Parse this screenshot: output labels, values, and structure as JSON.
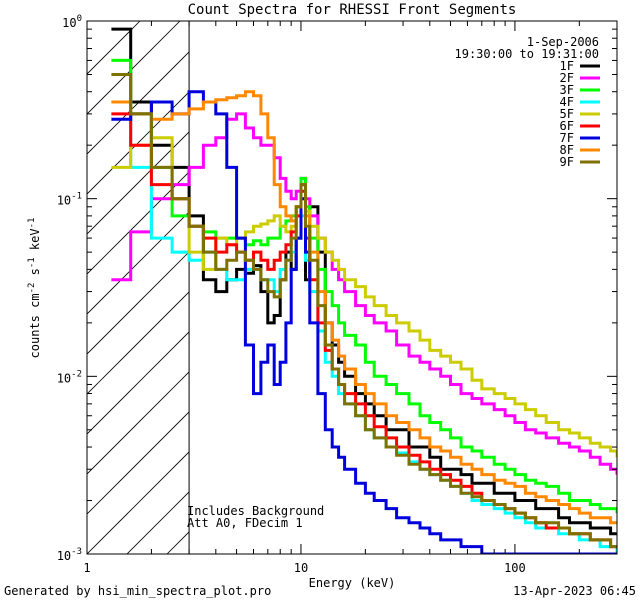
{
  "chart_data": {
    "type": "line",
    "scale": "log-log",
    "title": "Count Spectra for RHESSI Front Segments",
    "xlabel": "Energy (keV)",
    "ylabel_parts": [
      "counts cm",
      "-2",
      " s",
      "-1",
      " keV",
      "-1"
    ],
    "xlim": [
      1,
      300
    ],
    "ylim": [
      0.001,
      1
    ],
    "x_ticks": [
      {
        "value": 1,
        "label": "1"
      },
      {
        "value": 10,
        "label": "10"
      },
      {
        "value": 100,
        "label": "100"
      }
    ],
    "y_ticks": [
      {
        "value": 1,
        "mant": "10",
        "exp": "0"
      },
      {
        "value": 0.1,
        "mant": "10",
        "exp": "-1"
      },
      {
        "value": 0.01,
        "mant": "10",
        "exp": "-2"
      },
      {
        "value": 0.001,
        "mant": "10",
        "exp": "-3"
      }
    ],
    "date": "1-Sep-2006",
    "time_range": "19:30:00 to 19:31:00",
    "hatched_region_max_energy": 3,
    "annotation_lines": [
      "Includes Background",
      "Att A0, FDecim 1"
    ],
    "footer_left": "Generated by hsi_min_spectra_plot.pro",
    "footer_right": "13-Apr-2023 06:45",
    "energy_bins": [
      1.3,
      1.6,
      2.0,
      2.5,
      3.0,
      3.5,
      4.0,
      4.5,
      5.0,
      5.5,
      6.0,
      6.5,
      7.0,
      7.5,
      8.0,
      8.5,
      9.0,
      9.5,
      10.0,
      10.5,
      11.0,
      12.0,
      13.0,
      14.0,
      15.0,
      16.0,
      18.0,
      20.0,
      22.0,
      25.0,
      28.0,
      32.0,
      36.0,
      40.0,
      45.0,
      50.0,
      56.0,
      63.0,
      70.0,
      80.0,
      90.0,
      100.0,
      112.0,
      125.0,
      140.0,
      160.0,
      180.0,
      200.0,
      225.0,
      250.0,
      280.0,
      300.0
    ],
    "series": [
      {
        "name": "1F",
        "color": "#000000",
        "values": [
          0.9,
          0.35,
          0.2,
          0.15,
          0.08,
          0.035,
          0.03,
          0.035,
          0.04,
          0.038,
          0.042,
          0.03,
          0.02,
          0.022,
          0.035,
          0.05,
          0.04,
          0.06,
          0.12,
          0.035,
          0.09,
          0.05,
          0.02,
          0.015,
          0.012,
          0.01,
          0.008,
          0.007,
          0.006,
          0.005,
          0.005,
          0.004,
          0.004,
          0.0035,
          0.003,
          0.003,
          0.0028,
          0.0025,
          0.0025,
          0.0022,
          0.0022,
          0.002,
          0.002,
          0.0018,
          0.0018,
          0.0016,
          0.0015,
          0.0015,
          0.0014,
          0.0014,
          0.0013,
          0.0013
        ]
      },
      {
        "name": "2F",
        "color": "#ff00ff",
        "values": [
          0.035,
          0.065,
          0.1,
          0.12,
          0.15,
          0.2,
          0.22,
          0.28,
          0.3,
          0.25,
          0.22,
          0.2,
          0.2,
          0.17,
          0.13,
          0.11,
          0.1,
          0.11,
          0.13,
          0.1,
          0.08,
          0.06,
          0.05,
          0.04,
          0.035,
          0.03,
          0.025,
          0.022,
          0.02,
          0.018,
          0.015,
          0.013,
          0.012,
          0.011,
          0.01,
          0.009,
          0.008,
          0.0075,
          0.007,
          0.0065,
          0.006,
          0.0055,
          0.005,
          0.0048,
          0.0045,
          0.0042,
          0.004,
          0.0038,
          0.0035,
          0.0032,
          0.003,
          0.0028
        ]
      },
      {
        "name": "3F",
        "color": "#00ff00",
        "values": [
          0.6,
          0.3,
          0.15,
          0.08,
          0.07,
          0.065,
          0.06,
          0.06,
          0.06,
          0.055,
          0.058,
          0.055,
          0.06,
          0.06,
          0.07,
          0.075,
          0.08,
          0.09,
          0.13,
          0.09,
          0.06,
          0.04,
          0.03,
          0.025,
          0.02,
          0.017,
          0.015,
          0.012,
          0.01,
          0.009,
          0.008,
          0.007,
          0.006,
          0.0055,
          0.005,
          0.0045,
          0.004,
          0.0038,
          0.0035,
          0.0032,
          0.003,
          0.0028,
          0.0026,
          0.0025,
          0.0024,
          0.0022,
          0.002,
          0.002,
          0.0019,
          0.0018,
          0.0018,
          0.0017
        ]
      },
      {
        "name": "4F",
        "color": "#00ffff",
        "values": [
          0.35,
          0.15,
          0.06,
          0.05,
          0.045,
          0.05,
          0.04,
          0.035,
          0.035,
          0.04,
          0.04,
          0.035,
          0.035,
          0.03,
          0.04,
          0.045,
          0.05,
          0.06,
          0.08,
          0.045,
          0.03,
          0.018,
          0.012,
          0.01,
          0.008,
          0.007,
          0.006,
          0.005,
          0.0045,
          0.004,
          0.0037,
          0.0033,
          0.003,
          0.0028,
          0.0026,
          0.0024,
          0.0022,
          0.002,
          0.0019,
          0.0018,
          0.0017,
          0.0016,
          0.0015,
          0.0014,
          0.0014,
          0.0013,
          0.0013,
          0.0012,
          0.0012,
          0.0011,
          0.0011,
          0.001
        ]
      },
      {
        "name": "5F",
        "color": "#cccc00",
        "values": [
          0.15,
          0.2,
          0.22,
          0.1,
          0.05,
          0.04,
          0.06,
          0.055,
          0.06,
          0.065,
          0.07,
          0.072,
          0.075,
          0.08,
          0.07,
          0.065,
          0.07,
          0.09,
          0.1,
          0.085,
          0.07,
          0.06,
          0.05,
          0.045,
          0.04,
          0.035,
          0.032,
          0.028,
          0.025,
          0.022,
          0.02,
          0.018,
          0.016,
          0.014,
          0.013,
          0.012,
          0.011,
          0.0095,
          0.0085,
          0.008,
          0.0075,
          0.007,
          0.0065,
          0.006,
          0.0055,
          0.005,
          0.0048,
          0.0045,
          0.0042,
          0.004,
          0.0038,
          0.0035
        ]
      },
      {
        "name": "6F",
        "color": "#ff0000",
        "values": [
          0.3,
          0.2,
          0.12,
          0.1,
          0.07,
          0.06,
          0.05,
          0.055,
          0.05,
          0.045,
          0.05,
          0.045,
          0.04,
          0.045,
          0.05,
          0.055,
          0.065,
          0.08,
          0.11,
          0.06,
          0.035,
          0.02,
          0.014,
          0.011,
          0.009,
          0.008,
          0.007,
          0.006,
          0.0052,
          0.0045,
          0.004,
          0.0036,
          0.0033,
          0.003,
          0.0028,
          0.0026,
          0.0024,
          0.0022,
          0.002,
          0.0019,
          0.0018,
          0.0017,
          0.0016,
          0.0015,
          0.0014,
          0.0014,
          0.0013,
          0.0013,
          0.0012,
          0.0012,
          0.0011,
          0.0011
        ]
      },
      {
        "name": "7F",
        "color": "#0000dd",
        "values": [
          0.28,
          0.3,
          0.35,
          0.3,
          0.4,
          0.35,
          0.3,
          0.15,
          0.06,
          0.015,
          0.008,
          0.012,
          0.015,
          0.009,
          0.012,
          0.02,
          0.04,
          0.06,
          0.1,
          0.05,
          0.02,
          0.008,
          0.005,
          0.004,
          0.0035,
          0.003,
          0.0025,
          0.0022,
          0.002,
          0.0018,
          0.0016,
          0.0015,
          0.0014,
          0.0013,
          0.0012,
          0.0012,
          0.0011,
          0.0011,
          0.001,
          0.001,
          0.001,
          0.001,
          0.001,
          0.001,
          0.001,
          0.001,
          0.001,
          0.001,
          0.001,
          0.001,
          0.001,
          0.001
        ]
      },
      {
        "name": "8F",
        "color": "#ff8800",
        "values": [
          0.35,
          0.3,
          0.28,
          0.3,
          0.32,
          0.35,
          0.36,
          0.37,
          0.38,
          0.4,
          0.38,
          0.3,
          0.22,
          0.12,
          0.09,
          0.08,
          0.075,
          0.09,
          0.12,
          0.08,
          0.05,
          0.03,
          0.02,
          0.016,
          0.013,
          0.011,
          0.009,
          0.008,
          0.007,
          0.006,
          0.0055,
          0.005,
          0.0045,
          0.004,
          0.0038,
          0.0035,
          0.0032,
          0.003,
          0.0028,
          0.0026,
          0.0025,
          0.0024,
          0.0022,
          0.0021,
          0.002,
          0.0019,
          0.0018,
          0.0017,
          0.0016,
          0.0016,
          0.0015,
          0.0015
        ]
      },
      {
        "name": "9F",
        "color": "#807000",
        "values": [
          0.5,
          0.3,
          0.15,
          0.1,
          0.07,
          0.05,
          0.04,
          0.045,
          0.05,
          0.045,
          0.04,
          0.035,
          0.03,
          0.028,
          0.035,
          0.045,
          0.06,
          0.09,
          0.12,
          0.07,
          0.045,
          0.025,
          0.015,
          0.011,
          0.009,
          0.007,
          0.006,
          0.005,
          0.0045,
          0.004,
          0.0036,
          0.0032,
          0.003,
          0.0028,
          0.0026,
          0.0024,
          0.0022,
          0.0021,
          0.002,
          0.0019,
          0.0018,
          0.0017,
          0.0016,
          0.0015,
          0.0015,
          0.0014,
          0.0013,
          0.0013,
          0.0012,
          0.0012,
          0.0011,
          0.0011
        ]
      }
    ]
  }
}
